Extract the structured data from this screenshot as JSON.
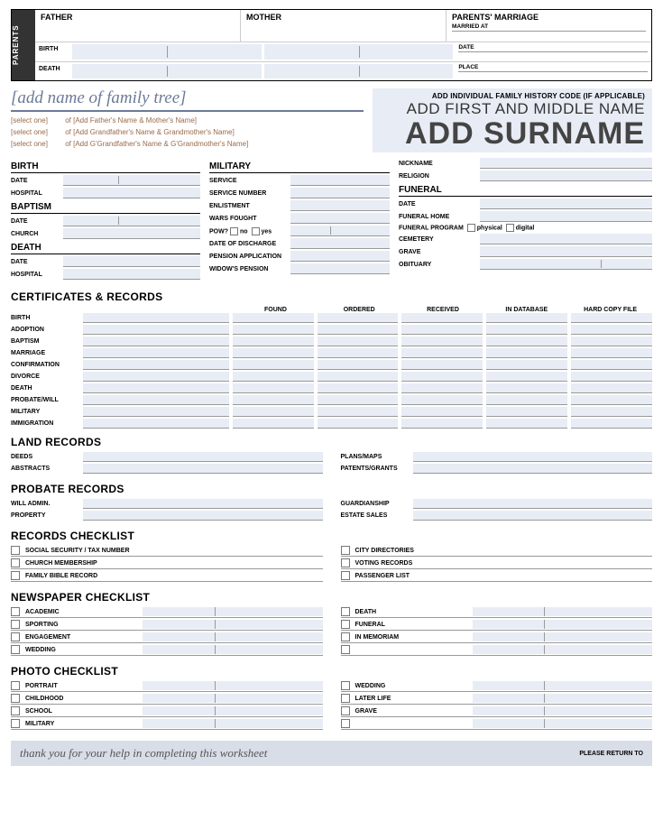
{
  "colors": {
    "fill": "#e8ecf5",
    "accent": "#6b7a99",
    "lineage": "#9a6b4a"
  },
  "parents": {
    "side_label": "PARENTS",
    "cols": [
      "FATHER",
      "MOTHER",
      "PARENTS' MARRIAGE"
    ],
    "marriage_rows": [
      "MARRIED AT",
      "DATE",
      "PLACE"
    ],
    "row_labels": [
      "BIRTH",
      "DEATH"
    ]
  },
  "tree": {
    "placeholder": "[add name of family tree]",
    "lines": [
      {
        "sel": "[select one]",
        "txt": "of [Add Father's Name & Mother's Name]"
      },
      {
        "sel": "[select one]",
        "txt": "of [Add Grandfather's Name & Grandmother's Name]"
      },
      {
        "sel": "[select one]",
        "txt": "of [Add G'Grandfather's Name & G'Grandmother's Name]"
      }
    ]
  },
  "title": {
    "code": "ADD INDIVIDUAL FAMILY HISTORY CODE (IF APPLICABLE)",
    "first_middle": "ADD FIRST AND MIDDLE NAME",
    "surname": "ADD SURNAME"
  },
  "vitals": {
    "col1": [
      {
        "sect": "BIRTH"
      },
      {
        "lab": "DATE",
        "split": true
      },
      {
        "lab": "HOSPITAL"
      },
      {
        "sect": "BAPTISM"
      },
      {
        "lab": "DATE",
        "split": true
      },
      {
        "lab": "CHURCH"
      },
      {
        "sect": "DEATH"
      },
      {
        "lab": "DATE"
      },
      {
        "lab": "HOSPITAL"
      }
    ],
    "col2": [
      {
        "sect": "MILITARY"
      },
      {
        "lab": "SERVICE"
      },
      {
        "lab": "SERVICE NUMBER"
      },
      {
        "lab": "ENLISTMENT"
      },
      {
        "lab": "WARS FOUGHT"
      },
      {
        "pow": true,
        "lab": "POW?",
        "no": "no",
        "yes": "yes"
      },
      {
        "lab": "DATE OF DISCHARGE"
      },
      {
        "lab": "PENSION APPLICATION"
      },
      {
        "lab": "WIDOW'S PENSION"
      }
    ],
    "col3": [
      {
        "lab": "NICKNAME"
      },
      {
        "lab": "RELIGION"
      },
      {
        "sect": "FUNERAL"
      },
      {
        "lab": "DATE"
      },
      {
        "lab": "FUNERAL HOME"
      },
      {
        "prog": true,
        "lab": "FUNERAL PROGRAM",
        "a": "physical",
        "b": "digital"
      },
      {
        "lab": "CEMETERY"
      },
      {
        "lab": "GRAVE"
      },
      {
        "lab": "OBITUARY",
        "split2": true
      }
    ]
  },
  "certificates": {
    "title": "CERTIFICATES & RECORDS",
    "heads": [
      "FOUND",
      "ORDERED",
      "RECEIVED",
      "IN DATABASE",
      "HARD COPY FILE"
    ],
    "rows": [
      "BIRTH",
      "ADOPTION",
      "BAPTISM",
      "MARRIAGE",
      "CONFIRMATION",
      "DIVORCE",
      "DEATH",
      "PROBATE/WILL",
      "MILITARY",
      "IMMIGRATION"
    ]
  },
  "land": {
    "title": "LAND RECORDS",
    "left": [
      "DEEDS",
      "ABSTRACTS"
    ],
    "right": [
      "PLANS/MAPS",
      "PATENTS/GRANTS"
    ]
  },
  "probate": {
    "title": "PROBATE RECORDS",
    "left": [
      "WILL ADMIN.",
      "PROPERTY"
    ],
    "right": [
      "GUARDIANSHIP",
      "ESTATE SALES"
    ]
  },
  "records_check": {
    "title": "RECORDS CHECKLIST",
    "left": [
      "SOCIAL SECURITY / TAX NUMBER",
      "CHURCH MEMBERSHIP",
      "FAMILY BIBLE RECORD"
    ],
    "right": [
      "CITY DIRECTORIES",
      "VOTING RECORDS",
      "PASSENGER LIST"
    ]
  },
  "news": {
    "title": "NEWSPAPER CHECKLIST",
    "left": [
      "ACADEMIC",
      "SPORTING",
      "ENGAGEMENT",
      "WEDDING"
    ],
    "right": [
      "DEATH",
      "FUNERAL",
      "IN MEMORIAM",
      ""
    ]
  },
  "photo": {
    "title": "PHOTO CHECKLIST",
    "left": [
      "PORTRAIT",
      "CHILDHOOD",
      "SCHOOL",
      "MILITARY"
    ],
    "right": [
      "WEDDING",
      "LATER LIFE",
      "GRAVE",
      ""
    ]
  },
  "footer": {
    "thanks": "thank you for your help in completing this worksheet",
    "return": "PLEASE RETURN TO"
  }
}
